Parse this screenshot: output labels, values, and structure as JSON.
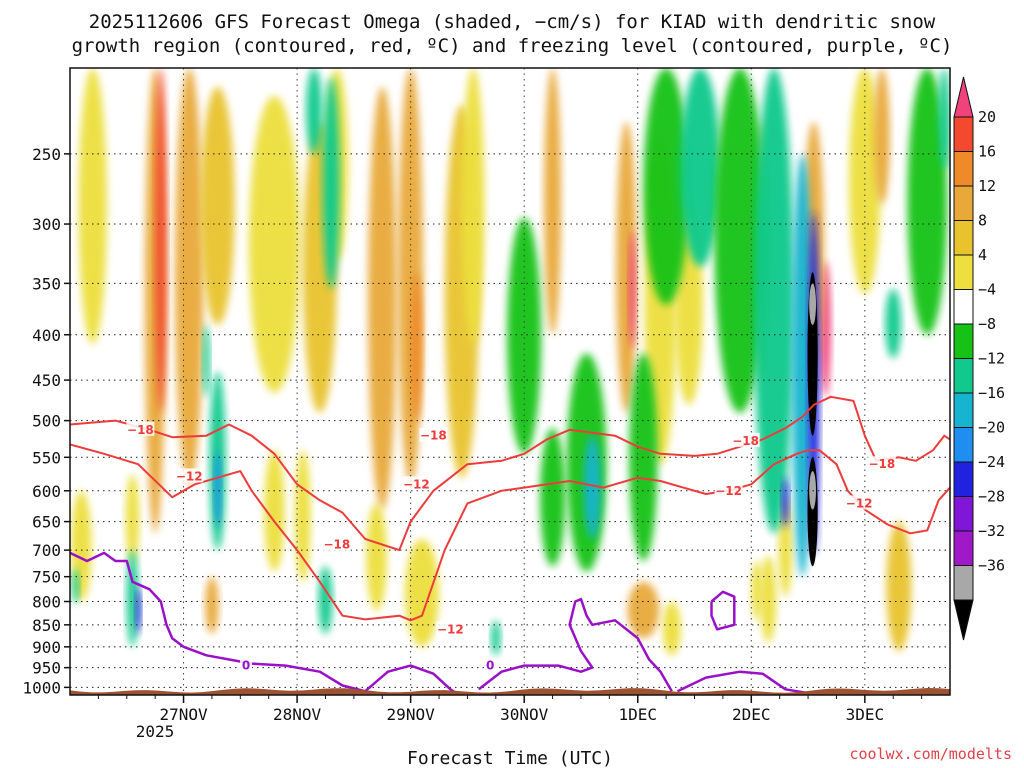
{
  "chart_data": {
    "type": "heatmap",
    "title_line1": "2025112606 GFS Forecast Omega (shaded, −cm/s) for KIAD with dendritic snow",
    "title_line2": "growth region (contoured, red, ºC) and freezing level (contoured, purple, ºC)",
    "xlabel": "Forecast Time (UTC)",
    "credit": "coolwx.com/modelts",
    "x_ticks": [
      {
        "label": "27NOV",
        "day": 1
      },
      {
        "label": "28NOV",
        "day": 2
      },
      {
        "label": "29NOV",
        "day": 3
      },
      {
        "label": "30NOV",
        "day": 4
      },
      {
        "label": "1DEC",
        "day": 5
      },
      {
        "label": "2DEC",
        "day": 6
      },
      {
        "label": "3DEC",
        "day": 7
      }
    ],
    "x_year_label": "2025",
    "x_range_days": [
      0.0,
      7.75
    ],
    "y_ticks": [
      250,
      300,
      350,
      400,
      450,
      500,
      550,
      600,
      650,
      700,
      750,
      800,
      850,
      900,
      950,
      1000
    ],
    "ylim_hpa": [
      200,
      1020
    ],
    "colorbar": {
      "labels": [
        "20",
        "16",
        "12",
        "8",
        "4",
        "−4",
        "−8",
        "−12",
        "−16",
        "−20",
        "−24",
        "−28",
        "−32",
        "−36"
      ],
      "colors": [
        "#f0427b",
        "#f2492f",
        "#ee8a2a",
        "#e8a93a",
        "#e8c32e",
        "#ecdf3e",
        "#ffffff",
        "#16c216",
        "#11c98c",
        "#16b4cf",
        "#1f8ef0",
        "#2121e0",
        "#7f16d8",
        "#a019c8",
        "#a8a8a8",
        "#000000"
      ]
    },
    "contour_labels": [
      {
        "text": "−18",
        "color": "red"
      },
      {
        "text": "−12",
        "color": "red"
      },
      {
        "text": "0",
        "color": "purple"
      }
    ],
    "red_contour_m18": [
      [
        0.0,
        505
      ],
      [
        0.4,
        500
      ],
      [
        0.7,
        512
      ],
      [
        0.9,
        522
      ],
      [
        1.2,
        520
      ],
      [
        1.4,
        505
      ],
      [
        1.6,
        520
      ],
      [
        1.8,
        545
      ],
      [
        2.0,
        590
      ],
      [
        2.2,
        615
      ],
      [
        2.4,
        635
      ],
      [
        2.6,
        680
      ],
      [
        2.9,
        700
      ],
      [
        3.0,
        650
      ],
      [
        3.2,
        600
      ],
      [
        3.5,
        560
      ],
      [
        3.8,
        555
      ],
      [
        4.0,
        545
      ],
      [
        4.2,
        525
      ],
      [
        4.4,
        512
      ],
      [
        4.8,
        520
      ],
      [
        5.0,
        535
      ],
      [
        5.2,
        545
      ],
      [
        5.5,
        548
      ],
      [
        5.7,
        545
      ],
      [
        5.9,
        535
      ],
      [
        6.1,
        525
      ],
      [
        6.3,
        510
      ],
      [
        6.45,
        495
      ],
      [
        6.55,
        480
      ],
      [
        6.7,
        470
      ],
      [
        6.9,
        475
      ],
      [
        7.0,
        520
      ],
      [
        7.1,
        555
      ],
      [
        7.3,
        550
      ],
      [
        7.45,
        555
      ],
      [
        7.6,
        540
      ],
      [
        7.7,
        520
      ],
      [
        7.75,
        525
      ]
    ],
    "red_contour_m12": [
      [
        0.0,
        532
      ],
      [
        0.3,
        545
      ],
      [
        0.6,
        560
      ],
      [
        0.9,
        610
      ],
      [
        1.1,
        590
      ],
      [
        1.3,
        580
      ],
      [
        1.5,
        570
      ],
      [
        1.6,
        600
      ],
      [
        1.8,
        650
      ],
      [
        2.0,
        700
      ],
      [
        2.2,
        760
      ],
      [
        2.4,
        830
      ],
      [
        2.6,
        838
      ],
      [
        2.9,
        830
      ],
      [
        3.0,
        840
      ],
      [
        3.1,
        830
      ],
      [
        3.3,
        700
      ],
      [
        3.5,
        620
      ],
      [
        3.8,
        600
      ],
      [
        4.0,
        595
      ],
      [
        4.2,
        590
      ],
      [
        4.4,
        585
      ],
      [
        4.7,
        595
      ],
      [
        5.0,
        580
      ],
      [
        5.2,
        585
      ],
      [
        5.4,
        595
      ],
      [
        5.6,
        605
      ],
      [
        5.8,
        600
      ],
      [
        6.0,
        590
      ],
      [
        6.2,
        560
      ],
      [
        6.4,
        545
      ],
      [
        6.5,
        540
      ],
      [
        6.6,
        540
      ],
      [
        6.75,
        560
      ],
      [
        6.85,
        600
      ],
      [
        7.0,
        630
      ],
      [
        7.2,
        655
      ],
      [
        7.4,
        670
      ],
      [
        7.55,
        665
      ],
      [
        7.65,
        615
      ],
      [
        7.75,
        595
      ]
    ],
    "purple_contour_0_main": [
      [
        0.0,
        705
      ],
      [
        0.15,
        720
      ],
      [
        0.3,
        705
      ],
      [
        0.4,
        720
      ],
      [
        0.5,
        720
      ],
      [
        0.55,
        760
      ],
      [
        0.7,
        775
      ],
      [
        0.8,
        800
      ],
      [
        0.85,
        850
      ],
      [
        0.9,
        880
      ],
      [
        1.0,
        900
      ],
      [
        1.2,
        920
      ],
      [
        1.6,
        940
      ],
      [
        1.9,
        945
      ],
      [
        2.2,
        960
      ],
      [
        2.4,
        995
      ],
      [
        2.6,
        1010
      ]
    ],
    "purple_contour_0_b": [
      [
        2.6,
        1010
      ],
      [
        2.8,
        960
      ],
      [
        3.0,
        945
      ],
      [
        3.2,
        965
      ],
      [
        3.35,
        1005
      ],
      [
        3.4,
        1015
      ]
    ],
    "purple_contour_0_c": [
      [
        3.6,
        1005
      ],
      [
        3.8,
        960
      ],
      [
        4.0,
        945
      ],
      [
        4.3,
        945
      ],
      [
        4.5,
        960
      ],
      [
        4.6,
        950
      ],
      [
        4.5,
        910
      ],
      [
        4.4,
        850
      ],
      [
        4.45,
        800
      ],
      [
        4.5,
        795
      ],
      [
        4.55,
        830
      ],
      [
        4.6,
        850
      ],
      [
        4.8,
        840
      ],
      [
        5.0,
        880
      ],
      [
        5.1,
        930
      ],
      [
        5.2,
        960
      ],
      [
        5.3,
        1010
      ]
    ],
    "purple_contour_0_d": [
      [
        5.35,
        1010
      ],
      [
        5.6,
        975
      ],
      [
        5.9,
        960
      ],
      [
        6.1,
        965
      ],
      [
        6.3,
        1005
      ],
      [
        6.5,
        1015
      ]
    ],
    "purple_loop": [
      [
        5.65,
        800
      ],
      [
        5.75,
        780
      ],
      [
        5.85,
        790
      ],
      [
        5.85,
        850
      ],
      [
        5.7,
        860
      ],
      [
        5.65,
        830
      ],
      [
        5.65,
        800
      ]
    ],
    "red_label_positions": [
      {
        "text": "−18",
        "day": 0.62,
        "hpa": 512
      },
      {
        "text": "−12",
        "day": 1.05,
        "hpa": 578
      },
      {
        "text": "−18",
        "day": 2.35,
        "hpa": 690
      },
      {
        "text": "−12",
        "day": 3.35,
        "hpa": 860
      },
      {
        "text": "−18",
        "day": 3.2,
        "hpa": 520
      },
      {
        "text": "−12",
        "day": 3.05,
        "hpa": 590
      },
      {
        "text": "−18",
        "day": 5.95,
        "hpa": 527
      },
      {
        "text": "−12",
        "day": 5.8,
        "hpa": 600
      },
      {
        "text": "−18",
        "day": 7.15,
        "hpa": 560
      },
      {
        "text": "−12",
        "day": 6.95,
        "hpa": 620
      }
    ],
    "purple_label_positions": [
      {
        "text": "0",
        "day": 1.55,
        "hpa": 945
      },
      {
        "text": "0",
        "day": 3.7,
        "hpa": 945
      }
    ],
    "omega_patches": [
      {
        "day": 0.75,
        "hpa": 420,
        "w": 0.18,
        "h": 500,
        "v": 10
      },
      {
        "day": 0.8,
        "hpa": 330,
        "w": 0.1,
        "h": 320,
        "v": 18
      },
      {
        "day": 1.05,
        "hpa": 380,
        "w": 0.25,
        "h": 420,
        "v": 8
      },
      {
        "day": 1.3,
        "hpa": 300,
        "w": 0.3,
        "h": 180,
        "v": 6
      },
      {
        "day": 1.8,
        "hpa": 340,
        "w": 0.45,
        "h": 250,
        "v": 5
      },
      {
        "day": 2.2,
        "hpa": 360,
        "w": 0.3,
        "h": 260,
        "v": 6
      },
      {
        "day": 2.35,
        "hpa": 260,
        "w": 0.2,
        "h": 140,
        "v": 5
      },
      {
        "day": 2.75,
        "hpa": 420,
        "w": 0.25,
        "h": 420,
        "v": 8
      },
      {
        "day": 3.0,
        "hpa": 380,
        "w": 0.22,
        "h": 420,
        "v": 10
      },
      {
        "day": 3.05,
        "hpa": 420,
        "w": 0.1,
        "h": 160,
        "v": 14
      },
      {
        "day": 3.45,
        "hpa": 400,
        "w": 0.3,
        "h": 360,
        "v": 6
      },
      {
        "day": 3.55,
        "hpa": 300,
        "w": 0.2,
        "h": 220,
        "v": 5
      },
      {
        "day": 4.25,
        "hpa": 300,
        "w": 0.15,
        "h": 200,
        "v": 9
      },
      {
        "day": 4.9,
        "hpa": 360,
        "w": 0.18,
        "h": 260,
        "v": 10
      },
      {
        "day": 4.95,
        "hpa": 360,
        "w": 0.06,
        "h": 110,
        "v": 20
      },
      {
        "day": 5.2,
        "hpa": 400,
        "w": 0.28,
        "h": 320,
        "v": 5
      },
      {
        "day": 5.45,
        "hpa": 380,
        "w": 0.25,
        "h": 200,
        "v": 5
      },
      {
        "day": 6.1,
        "hpa": 340,
        "w": 0.14,
        "h": 220,
        "v": 5
      },
      {
        "day": 6.65,
        "hpa": 400,
        "w": 0.1,
        "h": 140,
        "v": 20
      },
      {
        "day": 6.55,
        "hpa": 330,
        "w": 0.18,
        "h": 200,
        "v": 10
      },
      {
        "day": 7.0,
        "hpa": 280,
        "w": 0.28,
        "h": 160,
        "v": 5
      },
      {
        "day": 7.15,
        "hpa": 240,
        "w": 0.14,
        "h": 90,
        "v": 9
      },
      {
        "day": 0.2,
        "hpa": 300,
        "w": 0.25,
        "h": 220,
        "v": 5
      },
      {
        "day": 0.1,
        "hpa": 700,
        "w": 0.18,
        "h": 200,
        "v": 5
      },
      {
        "day": 0.55,
        "hpa": 650,
        "w": 0.12,
        "h": 150,
        "v": 5
      },
      {
        "day": 1.25,
        "hpa": 810,
        "w": 0.12,
        "h": 120,
        "v": 9
      },
      {
        "day": 1.8,
        "hpa": 640,
        "w": 0.18,
        "h": 200,
        "v": 5
      },
      {
        "day": 2.05,
        "hpa": 650,
        "w": 0.14,
        "h": 220,
        "v": 5
      },
      {
        "day": 2.7,
        "hpa": 720,
        "w": 0.18,
        "h": 200,
        "v": 5
      },
      {
        "day": 3.1,
        "hpa": 790,
        "w": 0.3,
        "h": 220,
        "v": 5
      },
      {
        "day": 5.05,
        "hpa": 820,
        "w": 0.28,
        "h": 120,
        "v": 9
      },
      {
        "day": 5.3,
        "hpa": 860,
        "w": 0.16,
        "h": 120,
        "v": 5
      },
      {
        "day": 6.05,
        "hpa": 780,
        "w": 0.1,
        "h": 120,
        "v": 5
      },
      {
        "day": 7.3,
        "hpa": 780,
        "w": 0.22,
        "h": 260,
        "v": 6
      },
      {
        "day": 6.15,
        "hpa": 800,
        "w": 0.14,
        "h": 180,
        "v": 5
      },
      {
        "day": 6.3,
        "hpa": 700,
        "w": 0.12,
        "h": 180,
        "v": 5
      },
      {
        "day": 4.25,
        "hpa": 620,
        "w": 0.22,
        "h": 220,
        "v": -5
      },
      {
        "day": 4.55,
        "hpa": 580,
        "w": 0.35,
        "h": 320,
        "v": -6
      },
      {
        "day": 4.6,
        "hpa": 600,
        "w": 0.15,
        "h": 160,
        "v": -12
      },
      {
        "day": 4.0,
        "hpa": 420,
        "w": 0.3,
        "h": 250,
        "v": -5
      },
      {
        "day": 5.05,
        "hpa": 570,
        "w": 0.25,
        "h": 300,
        "v": -6
      },
      {
        "day": 5.25,
        "hpa": 280,
        "w": 0.4,
        "h": 180,
        "v": -6
      },
      {
        "day": 5.55,
        "hpa": 260,
        "w": 0.35,
        "h": 150,
        "v": -8
      },
      {
        "day": 5.9,
        "hpa": 330,
        "w": 0.45,
        "h": 320,
        "v": -6
      },
      {
        "day": 6.2,
        "hpa": 420,
        "w": 0.35,
        "h": 500,
        "v": -10
      },
      {
        "day": 6.45,
        "hpa": 500,
        "w": 0.18,
        "h": 500,
        "v": -14
      },
      {
        "day": 6.55,
        "hpa": 500,
        "w": 0.1,
        "h": 420,
        "v": -20
      },
      {
        "day": 6.54,
        "hpa": 430,
        "w": 0.09,
        "h": 180,
        "v": -36
      },
      {
        "day": 6.54,
        "hpa": 640,
        "w": 0.09,
        "h": 180,
        "v": -34
      },
      {
        "day": 6.54,
        "hpa": 600,
        "w": 0.06,
        "h": 60,
        "v": -32
      },
      {
        "day": 6.54,
        "hpa": 370,
        "w": 0.06,
        "h": 40,
        "v": -32
      },
      {
        "day": 6.3,
        "hpa": 620,
        "w": 0.06,
        "h": 80,
        "v": -22
      },
      {
        "day": 7.55,
        "hpa": 300,
        "w": 0.35,
        "h": 200,
        "v": -6
      },
      {
        "day": 7.7,
        "hpa": 230,
        "w": 0.1,
        "h": 60,
        "v": -8
      },
      {
        "day": 1.3,
        "hpa": 570,
        "w": 0.14,
        "h": 260,
        "v": -10
      },
      {
        "day": 1.3,
        "hpa": 600,
        "w": 0.06,
        "h": 120,
        "v": -16
      },
      {
        "day": 0.55,
        "hpa": 800,
        "w": 0.1,
        "h": 200,
        "v": -8
      },
      {
        "day": 0.6,
        "hpa": 820,
        "w": 0.05,
        "h": 100,
        "v": -20
      },
      {
        "day": 0.05,
        "hpa": 770,
        "w": 0.06,
        "h": 70,
        "v": -8
      },
      {
        "day": 2.25,
        "hpa": 800,
        "w": 0.12,
        "h": 140,
        "v": -8
      },
      {
        "day": 2.3,
        "hpa": 280,
        "w": 0.15,
        "h": 150,
        "v": -8
      },
      {
        "day": 2.15,
        "hpa": 220,
        "w": 0.14,
        "h": 60,
        "v": -10
      },
      {
        "day": 1.2,
        "hpa": 430,
        "w": 0.06,
        "h": 80,
        "v": -8
      },
      {
        "day": 3.75,
        "hpa": 880,
        "w": 0.08,
        "h": 80,
        "v": -8
      },
      {
        "day": 7.25,
        "hpa": 390,
        "w": 0.14,
        "h": 70,
        "v": -8
      }
    ]
  }
}
